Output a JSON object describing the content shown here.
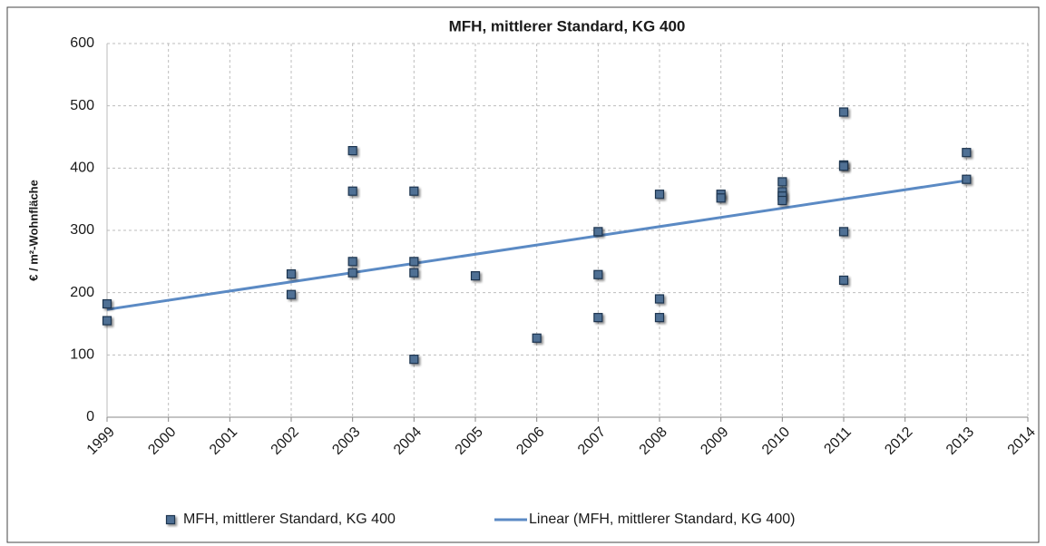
{
  "chart_data": {
    "type": "scatter",
    "title": "MFH, mittlerer Standard, KG 400",
    "y_label": "€ / m²-Wohnfläche",
    "xlim": [
      1999,
      2014
    ],
    "xticks": [
      1999,
      2000,
      2001,
      2002,
      2003,
      2004,
      2005,
      2006,
      2007,
      2008,
      2009,
      2010,
      2011,
      2012,
      2013,
      2014
    ],
    "ylim": [
      0,
      600
    ],
    "yticks": [
      0,
      100,
      200,
      300,
      400,
      500,
      600
    ],
    "grid": true,
    "legend": "bottom",
    "series": [
      {
        "name": "MFH, mittlerer Standard, KG 400",
        "color": "#4f6f94",
        "x": [
          1999,
          1999,
          2002,
          2002,
          2003,
          2003,
          2003,
          2003,
          2004,
          2004,
          2004,
          2004,
          2005,
          2006,
          2007,
          2007,
          2007,
          2008,
          2008,
          2008,
          2009,
          2009,
          2010,
          2010,
          2010,
          2010,
          2011,
          2011,
          2011,
          2011,
          2011,
          2013,
          2013
        ],
        "values": [
          182,
          155,
          230,
          197,
          428,
          363,
          250,
          232,
          363,
          250,
          232,
          93,
          227,
          127,
          298,
          229,
          160,
          358,
          190,
          160,
          358,
          352,
          378,
          362,
          355,
          348,
          490,
          405,
          403,
          298,
          220,
          425,
          382
        ]
      },
      {
        "name": "Linear (MFH, mittlerer Standard, KG 400)",
        "color": "#5b8ac4",
        "type": "line",
        "x": [
          1999,
          2013
        ],
        "values": [
          173,
          380
        ]
      }
    ]
  }
}
